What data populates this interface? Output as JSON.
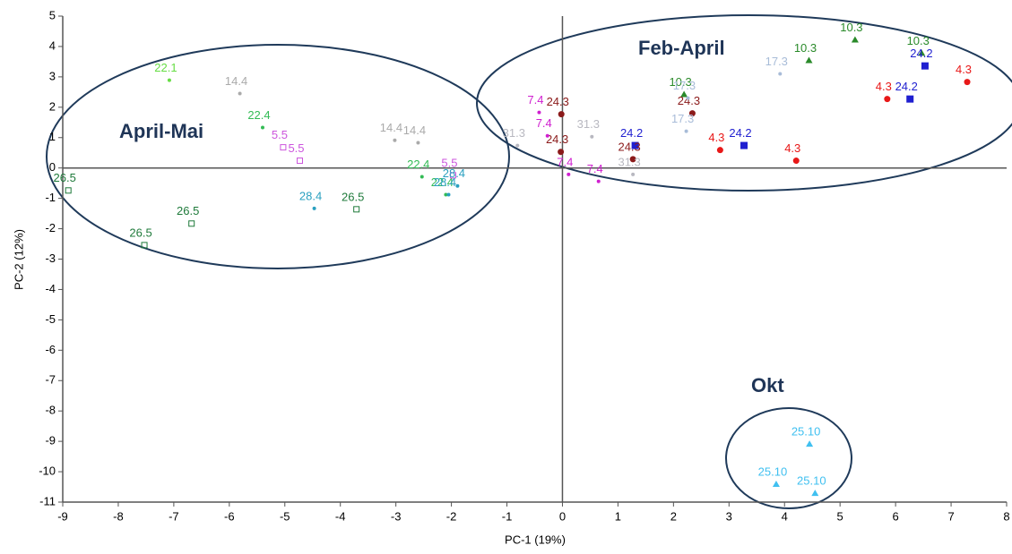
{
  "chart_data": {
    "type": "scatter",
    "x_label": "PC-1 (19%)",
    "y_label": "PC-2 (12%)",
    "xlim": [
      -9,
      8
    ],
    "ylim": [
      -11,
      5
    ],
    "xticks": [
      -9,
      -8,
      -7,
      -6,
      -5,
      -4,
      -3,
      -2,
      -1,
      0,
      1,
      2,
      3,
      4,
      5,
      6,
      7,
      8
    ],
    "yticks": [
      -11,
      -10,
      -9,
      -8,
      -7,
      -6,
      -5,
      -4,
      -3,
      -2,
      -1,
      0,
      1,
      2,
      3,
      4,
      5
    ],
    "grid": false,
    "annotations": [
      "April-Mai",
      "Feb-April",
      "Okt"
    ],
    "series": [
      {
        "name": "10.3",
        "color": "#2a8a2a",
        "marker": "triangle",
        "x": [
          4.44,
          5.27,
          6.47,
          2.19
        ],
        "y": [
          3.54,
          4.22,
          3.78,
          2.42
        ]
      },
      {
        "name": "24.2",
        "color": "#1f1fd0",
        "marker": "square",
        "x": [
          6.53,
          6.26,
          3.27,
          1.31
        ],
        "y": [
          3.36,
          2.27,
          0.74,
          0.74
        ]
      },
      {
        "name": "4.3",
        "color": "#e81818",
        "marker": "circle",
        "x": [
          7.29,
          5.85,
          4.21,
          2.84
        ],
        "y": [
          2.83,
          2.27,
          0.24,
          0.59
        ]
      },
      {
        "name": "24.3",
        "color": "#8b1a1a",
        "marker": "circle",
        "x": [
          2.34,
          1.27,
          -0.02,
          -0.03
        ],
        "y": [
          1.8,
          0.29,
          1.77,
          0.53
        ]
      },
      {
        "name": "17.3",
        "color": "#a8bcd8",
        "marker": "dot",
        "x": [
          3.92,
          2.23,
          2.26
        ],
        "y": [
          3.1,
          1.21,
          2.3
        ]
      },
      {
        "name": "31.3",
        "color": "#b8b8c0",
        "marker": "dot",
        "x": [
          -0.81,
          0.53,
          1.27
        ],
        "y": [
          0.74,
          1.03,
          -0.21
        ]
      },
      {
        "name": "7.4",
        "color": "#d020d0",
        "marker": "dot",
        "x": [
          -0.42,
          -0.27,
          0.11,
          0.65
        ],
        "y": [
          1.83,
          1.06,
          -0.21,
          -0.44
        ]
      },
      {
        "name": "22.1",
        "color": "#66dd44",
        "marker": "dot",
        "x": [
          -7.08
        ],
        "y": [
          2.89
        ]
      },
      {
        "name": "14.4",
        "color": "#aaaaaa",
        "marker": "dot",
        "x": [
          -5.81,
          -3.02,
          -2.6
        ],
        "y": [
          2.45,
          0.91,
          0.83
        ]
      },
      {
        "name": "22.4",
        "color": "#33bb55",
        "marker": "dot",
        "x": [
          -5.4,
          -2.53,
          -2.1
        ],
        "y": [
          1.33,
          -0.29,
          -0.88
        ]
      },
      {
        "name": "5.5",
        "color": "#cc55dd",
        "marker": "square-open",
        "x": [
          -5.03,
          -4.73,
          -1.97
        ],
        "y": [
          0.68,
          0.24,
          -0.24
        ]
      },
      {
        "name": "28.4",
        "color": "#2aa0c0",
        "marker": "dot",
        "x": [
          -4.47,
          -1.89,
          -2.05
        ],
        "y": [
          -1.33,
          -0.59,
          -0.88
        ]
      },
      {
        "name": "26.5",
        "color": "#1e7a3a",
        "marker": "square-open",
        "x": [
          -8.9,
          -6.68,
          -7.53,
          -3.71
        ],
        "y": [
          -0.74,
          -1.83,
          -2.54,
          -1.36
        ]
      },
      {
        "name": "25.10",
        "color": "#40c0f0",
        "marker": "triangle",
        "x": [
          4.45,
          3.85,
          4.55
        ],
        "y": [
          -9.09,
          -10.41,
          -10.71
        ]
      }
    ]
  }
}
